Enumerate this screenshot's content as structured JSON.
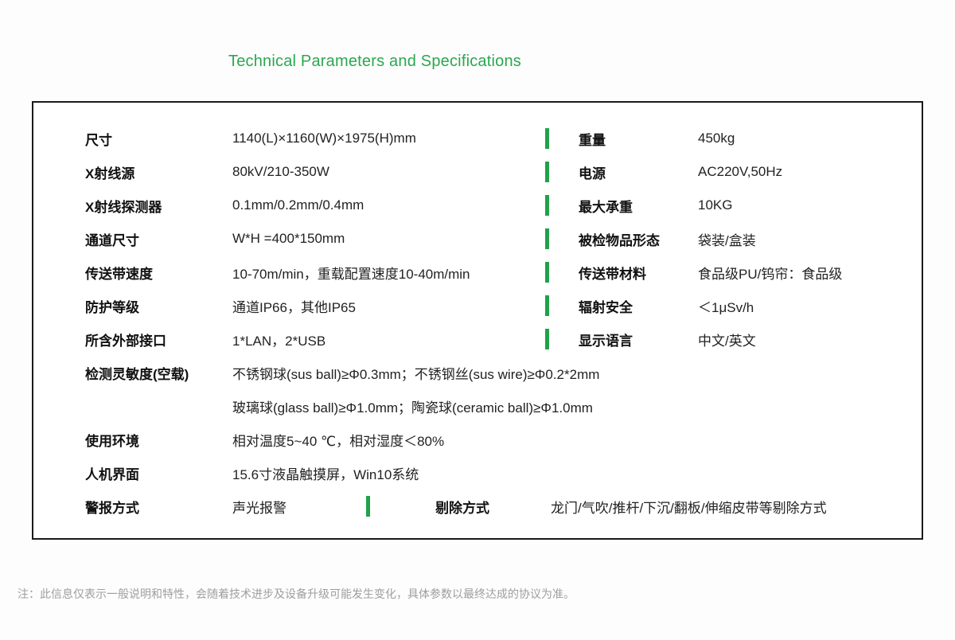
{
  "page": {
    "title": "Technical Parameters and Specifications",
    "footer_note": "注：此信息仅表示一般说明和特性，会随着技术进步及设备升级可能发生变化，具体参数以最终达成的协议为准。"
  },
  "colors": {
    "accent_green_title": "#2aa84f",
    "accent_green_bar": "#1fa24a",
    "table_border": "#1a1a1a",
    "text_dark": "#222222",
    "footer_gray": "#9e9e9e"
  },
  "table": {
    "paired_rows": [
      {
        "ll": "尺寸",
        "lv": "1140(L)×1160(W)×1975(H)mm",
        "rl": "重量",
        "rv": "450kg"
      },
      {
        "ll": "X射线源",
        "lv": "80kV/210-350W",
        "rl": "电源",
        "rv": "AC220V,50Hz"
      },
      {
        "ll": "X射线探测器",
        "lv": "0.1mm/0.2mm/0.4mm",
        "rl": "最大承重",
        "rv": "10KG"
      },
      {
        "ll": "通道尺寸",
        "lv": "W*H =400*150mm",
        "rl": "被检物品形态",
        "rv": "袋装/盒装"
      },
      {
        "ll": "传送带速度",
        "lv": "10-70m/min，重载配置速度10-40m/min",
        "rl": "传送带材料",
        "rv": "食品级PU/钨帘：食品级"
      },
      {
        "ll": "防护等级",
        "lv": "通道IP66，其他IP65",
        "rl": "辐射安全",
        "rv": "＜1μSv/h"
      },
      {
        "ll": "所含外部接口",
        "lv": "1*LAN，2*USB",
        "rl": "显示语言",
        "rv": "中文/英文"
      }
    ],
    "sensitivity": {
      "label": "检测灵敏度(空载)",
      "line1": "不锈钢球(sus ball)≥Φ0.3mm；不锈钢丝(sus wire)≥Φ0.2*2mm",
      "line2": "玻璃球(glass ball)≥Φ1.0mm；陶瓷球(ceramic ball)≥Φ1.0mm"
    },
    "environment": {
      "label": "使用环境",
      "value": "相对温度5~40 ℃，相对湿度＜80%"
    },
    "hmi": {
      "label": "人机界面",
      "value": "15.6寸液晶触摸屏，Win10系统"
    },
    "alarm": {
      "label": "警报方式",
      "value": "声光报警",
      "reject_label": "剔除方式",
      "reject_value": "龙门/气吹/推杆/下沉/翻板/伸缩皮带等剔除方式"
    }
  }
}
